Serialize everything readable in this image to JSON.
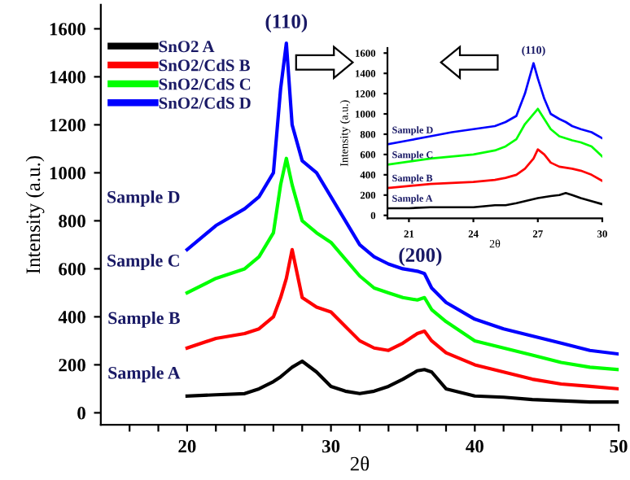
{
  "chart_data": [
    {
      "type": "line",
      "xlabel": "2θ",
      "ylabel": "Intensity (a.u.)",
      "xlim": [
        14,
        50
      ],
      "ylim": [
        -50,
        1700
      ],
      "xticks": [
        {
          "value": 16,
          "label": null
        },
        {
          "value": 18,
          "label": null
        },
        20,
        {
          "value": 22,
          "label": null
        },
        {
          "value": 24,
          "label": null
        },
        {
          "value": 26,
          "label": null
        },
        {
          "value": 28,
          "label": null
        },
        30,
        {
          "value": 32,
          "label": null
        },
        {
          "value": 34,
          "label": null
        },
        {
          "value": 36,
          "label": null
        },
        {
          "value": 38,
          "label": null
        },
        40,
        {
          "value": 42,
          "label": null
        },
        {
          "value": 44,
          "label": null
        },
        {
          "value": 46,
          "label": null
        },
        {
          "value": 48,
          "label": null
        },
        50
      ],
      "yticks": [
        0,
        200,
        400,
        600,
        800,
        1000,
        1200,
        1400,
        1600
      ],
      "legend": "top left",
      "grid": false,
      "x": [
        20,
        22,
        24,
        25,
        26,
        26.5,
        26.9,
        27.3,
        28,
        29,
        30,
        31,
        32,
        33,
        34,
        35,
        36,
        36.5,
        37,
        38,
        40,
        42,
        44,
        46,
        48,
        50
      ],
      "series": [
        {
          "name": "SnO2 A",
          "color": "#000000",
          "values": [
            70,
            75,
            80,
            100,
            130,
            150,
            170,
            190,
            215,
            170,
            110,
            90,
            80,
            90,
            110,
            140,
            175,
            180,
            170,
            100,
            70,
            65,
            55,
            50,
            45,
            45
          ]
        },
        {
          "name": "SnO2/CdS B",
          "color": "#ff0000",
          "values": [
            270,
            310,
            330,
            350,
            400,
            480,
            560,
            680,
            480,
            440,
            420,
            360,
            300,
            270,
            260,
            290,
            330,
            340,
            300,
            250,
            200,
            170,
            140,
            120,
            110,
            100
          ]
        },
        {
          "name": "SnO2/CdS C",
          "color": "#00ff00",
          "values": [
            500,
            560,
            600,
            650,
            750,
            950,
            1060,
            950,
            800,
            750,
            710,
            640,
            570,
            520,
            500,
            480,
            470,
            480,
            430,
            380,
            300,
            270,
            240,
            210,
            190,
            180
          ]
        },
        {
          "name": "SnO2/CdS D",
          "color": "#0000ff",
          "values": [
            680,
            780,
            850,
            900,
            1000,
            1350,
            1540,
            1200,
            1050,
            1000,
            900,
            800,
            700,
            650,
            620,
            600,
            590,
            580,
            520,
            460,
            390,
            350,
            320,
            290,
            260,
            245
          ]
        }
      ],
      "annotations": [
        "(110)",
        "(200)",
        "Sample A",
        "Sample B",
        "Sample C",
        "Sample D"
      ]
    },
    {
      "type": "line",
      "xlabel": "2θ",
      "ylabel": "Intensity (a.u.)",
      "xlim": [
        20,
        30
      ],
      "ylim": [
        -30,
        1650
      ],
      "xticks": [
        21,
        24,
        27,
        30
      ],
      "yticks": [
        0,
        200,
        400,
        600,
        800,
        1000,
        1200,
        1400,
        1600
      ],
      "grid": false,
      "x": [
        20,
        21,
        22,
        23,
        24,
        25,
        25.5,
        26,
        26.4,
        26.8,
        27,
        27.3,
        27.6,
        28,
        28.3,
        28.6,
        29,
        29.5,
        30
      ],
      "series": [
        {
          "color": "#000000",
          "values": [
            70,
            70,
            80,
            80,
            80,
            100,
            100,
            120,
            140,
            160,
            170,
            180,
            190,
            200,
            220,
            200,
            170,
            140,
            110
          ]
        },
        {
          "color": "#ff0000",
          "values": [
            270,
            290,
            310,
            320,
            330,
            350,
            370,
            400,
            460,
            560,
            650,
            600,
            520,
            480,
            470,
            460,
            440,
            400,
            340
          ]
        },
        {
          "color": "#00ff00",
          "values": [
            500,
            530,
            560,
            580,
            600,
            640,
            680,
            750,
            900,
            1000,
            1050,
            950,
            850,
            780,
            760,
            740,
            720,
            680,
            580
          ]
        },
        {
          "color": "#0000ff",
          "values": [
            700,
            740,
            780,
            820,
            850,
            880,
            920,
            980,
            1200,
            1500,
            1350,
            1150,
            1000,
            950,
            920,
            880,
            850,
            820,
            760
          ]
        }
      ],
      "annotations": [
        "(110)",
        "Sample A",
        "Sample B",
        "Sample C",
        "Sample D"
      ]
    }
  ]
}
